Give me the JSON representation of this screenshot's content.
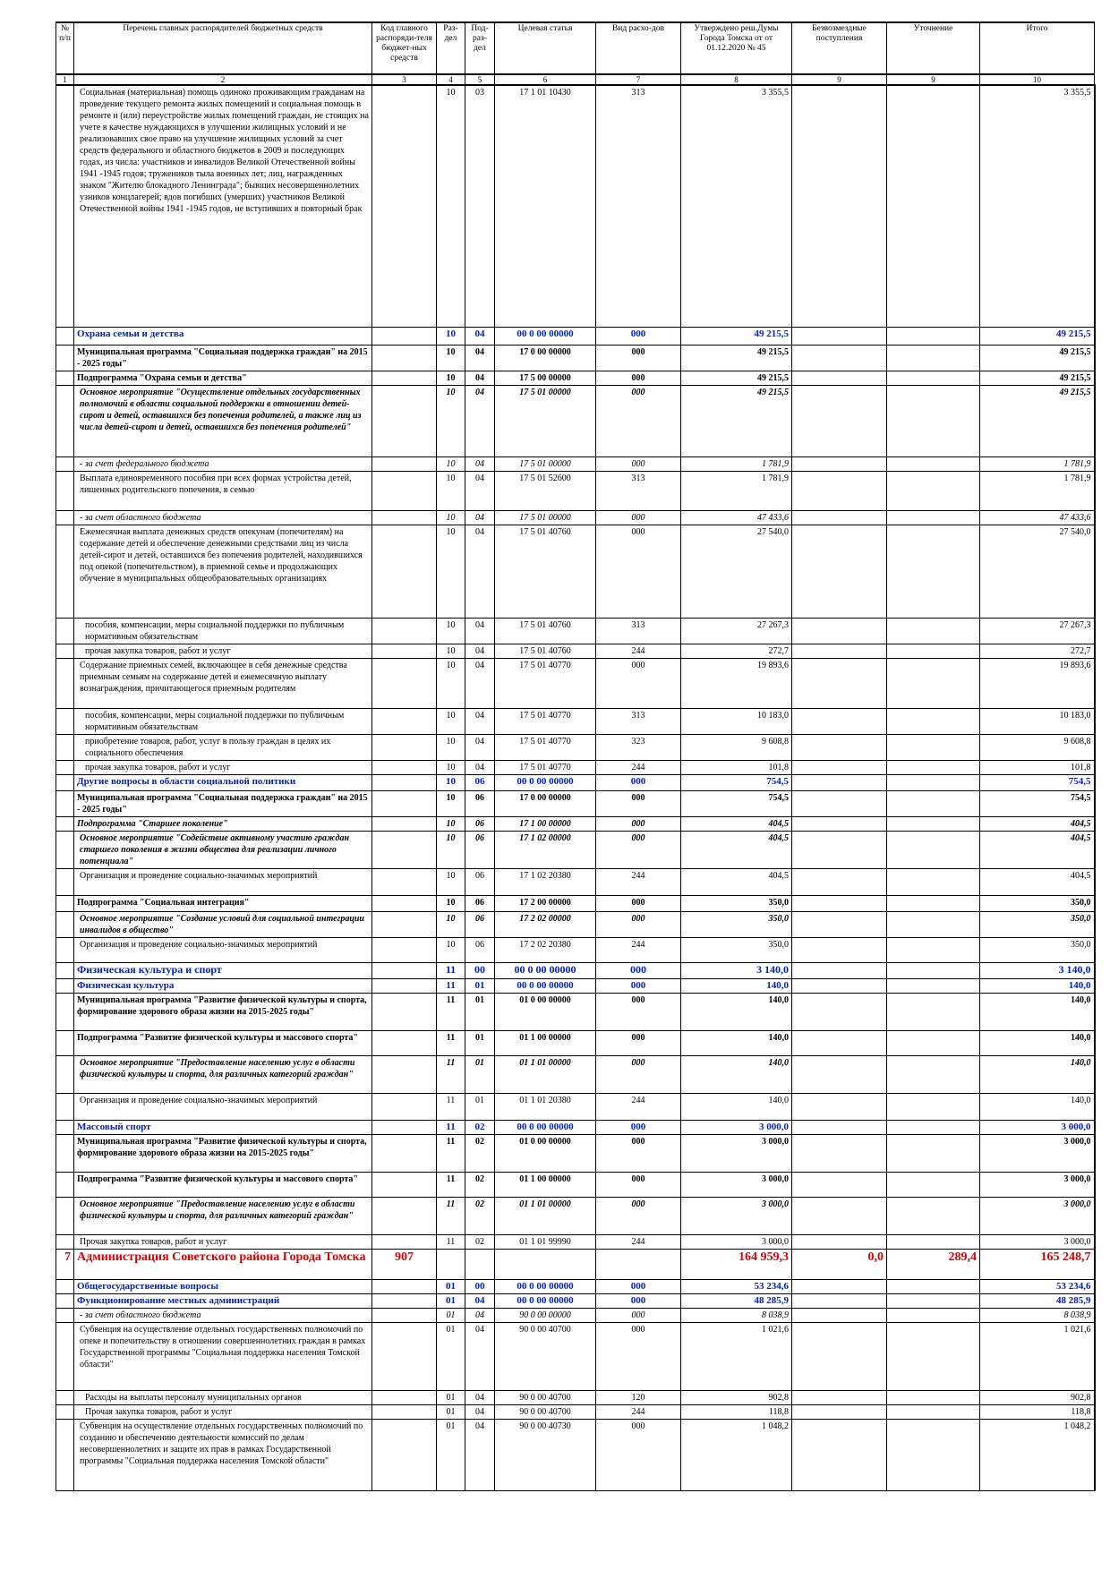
{
  "headers": [
    {
      "label": "№ п/п",
      "num": "1"
    },
    {
      "label": "Перечень главных распорядителей бюджетных средств",
      "num": "2"
    },
    {
      "label": "Код главного распоряди-теля бюджет-ных средств",
      "num": "3"
    },
    {
      "label": "Раз-дел",
      "num": "4"
    },
    {
      "label": "Под-раз-дел",
      "num": "5"
    },
    {
      "label": "Целевая статья",
      "num": "6"
    },
    {
      "label": "Вид расхо-дов",
      "num": "7"
    },
    {
      "label": "Утверждено реш.Думы Города Томска от от 01.12.2020 № 45",
      "num": "8"
    },
    {
      "label": "Безвозмездные поступления",
      "num": "9"
    },
    {
      "label": "Уточнение",
      "num": "9"
    },
    {
      "label": "Итого",
      "num": "10"
    }
  ],
  "rows": [
    {
      "style": "normal",
      "h": 270,
      "no": "",
      "name": "Социальная (материальная) помощь одиноко проживающим гражданам на проведение текущего ремонта жилых помещений и социальная помощь в ремонте и (или) переустройстве жилых помещений граждан, не стоящих на учете в качестве нуждающихся в улучшении жилищных условий и не реализовавших свое право на улучшение жилищных условий за счет средств федерального и областного бюджетов в 2009 и последующих годах, из числа: участников и инвалидов Великой Отечественной войны 1941 -1945 годов; тружеников тыла военных лет; лиц, награжденных знаком \"Жителю блокадного Ленинграда\"; бывших несовершеннолетних узников концлагерей; вдов погибших (умерших) участников Великой Отечественной войны 1941 -1945 годов, не вступивших в повторный брак",
      "code": "",
      "razd": "10",
      "podr": "03",
      "cs": "17 1 01 10430",
      "vr": "313",
      "appr": "3 355,5",
      "bezv": "",
      "utoch": "",
      "total": "3 355,5"
    },
    {
      "style": "section",
      "h": 20,
      "no": "",
      "name": "Охрана семьи и детства",
      "code": "",
      "razd": "10",
      "podr": "04",
      "cs": "00 0 00 00000",
      "vr": "000",
      "appr": "49 215,5",
      "bezv": "",
      "utoch": "",
      "total": "49 215,5"
    },
    {
      "style": "bold",
      "h": 28,
      "no": "",
      "name": "Муниципальная программа \"Социальная поддержка граждан\" на 2015 - 2025 годы\"",
      "code": "",
      "razd": "10",
      "podr": "04",
      "cs": "17 0 00 00000",
      "vr": "000",
      "appr": "49 215,5",
      "bezv": "",
      "utoch": "",
      "total": "49 215,5"
    },
    {
      "style": "bold",
      "h": 16,
      "no": "",
      "name": "Подпрограмма \"Охрана семьи и детства\"",
      "code": "",
      "razd": "10",
      "podr": "04",
      "cs": "17 5 00 00000",
      "vr": "000",
      "appr": "49 215,5",
      "bezv": "",
      "utoch": "",
      "total": "49 215,5"
    },
    {
      "style": "bi",
      "h": 80,
      "no": "",
      "name": "Основное мероприятие \"Осуществление отдельных государственных полномочий в области социальной поддержки в отношении детей-сирот и детей, оставшихся без попечения родителей, а также лиц из числа детей-сирот и детей, оставшихся без попечения родителей\"",
      "code": "",
      "razd": "10",
      "podr": "04",
      "cs": "17 5 01 00000",
      "vr": "000",
      "appr": "49 215,5",
      "bezv": "",
      "utoch": "",
      "total": "49 215,5"
    },
    {
      "style": "it",
      "h": 16,
      "no": "",
      "name": "- за счет федерального бюджета",
      "code": "",
      "razd": "10",
      "podr": "04",
      "cs": "17 5 01 00000",
      "vr": "000",
      "appr": "1 781,9",
      "bezv": "",
      "utoch": "",
      "total": "1 781,9"
    },
    {
      "style": "normal",
      "h": 44,
      "no": "",
      "name": "Выплата единовременного пособия при всех формах устройства детей, лишенных родительского попечения, в семью",
      "code": "",
      "razd": "10",
      "podr": "04",
      "cs": "17 5 01 52600",
      "vr": "313",
      "appr": "1 781,9",
      "bezv": "",
      "utoch": "",
      "total": "1 781,9"
    },
    {
      "style": "it",
      "h": 16,
      "no": "",
      "name": "- за счет областного бюджета",
      "code": "",
      "razd": "10",
      "podr": "04",
      "cs": "17 5 01 00000",
      "vr": "000",
      "appr": "47 433,6",
      "bezv": "",
      "utoch": "",
      "total": "47 433,6"
    },
    {
      "style": "normal",
      "h": 104,
      "no": "",
      "name": "Ежемесячная выплата денежных средств опекунам (попечителям) на содержание детей и обеспечение денежными средствами лиц из числа детей-сирот и детей, оставшихся без попечения родителей, находившихся под опекой (попечительством), в приемной семье и продолжающих обучение в муниципальных общеобразовательных организациях",
      "code": "",
      "razd": "10",
      "podr": "04",
      "cs": "17 5 01 40760",
      "vr": "000",
      "appr": "27 540,0",
      "bezv": "",
      "utoch": "",
      "total": "27 540,0"
    },
    {
      "style": "detail",
      "h": 28,
      "no": "",
      "name": "пособия, компенсации, меры социальной поддержки по публичным нормативным обязательствам",
      "code": "",
      "razd": "10",
      "podr": "04",
      "cs": "17 5 01 40760",
      "vr": "313",
      "appr": "27 267,3",
      "bezv": "",
      "utoch": "",
      "total": "27 267,3"
    },
    {
      "style": "detail",
      "h": 16,
      "no": "",
      "name": "прочая закупка товаров, работ и услуг",
      "code": "",
      "razd": "10",
      "podr": "04",
      "cs": "17 5 01 40760",
      "vr": "244",
      "appr": "272,7",
      "bezv": "",
      "utoch": "",
      "total": "272,7"
    },
    {
      "style": "normal",
      "h": 56,
      "no": "",
      "name": "Содержание приемных семей, включающее в себя денежные средства приемным семьям на содержание детей и ежемесячную выплату вознаграждения, причитающегося приемным родителям",
      "code": "",
      "razd": "10",
      "podr": "04",
      "cs": "17 5 01 40770",
      "vr": "000",
      "appr": "19 893,6",
      "bezv": "",
      "utoch": "",
      "total": "19 893,6"
    },
    {
      "style": "detail",
      "h": 28,
      "no": "",
      "name": "пособия, компенсации, меры социальной поддержки по публичным нормативным обязательствам",
      "code": "",
      "razd": "10",
      "podr": "04",
      "cs": "17 5 01 40770",
      "vr": "313",
      "appr": "10 183,0",
      "bezv": "",
      "utoch": "",
      "total": "10 183,0"
    },
    {
      "style": "detail",
      "h": 28,
      "no": "",
      "name": "приобретение товаров, работ, услуг в пользу граждан в целях их социального обеспечения",
      "code": "",
      "razd": "10",
      "podr": "04",
      "cs": "17 5 01 40770",
      "vr": "323",
      "appr": "9 608,8",
      "bezv": "",
      "utoch": "",
      "total": "9 608,8"
    },
    {
      "style": "detail",
      "h": 16,
      "no": "",
      "name": "прочая закупка товаров, работ и услуг",
      "code": "",
      "razd": "10",
      "podr": "04",
      "cs": "17 5 01 40770",
      "vr": "244",
      "appr": "101,8",
      "bezv": "",
      "utoch": "",
      "total": "101,8"
    },
    {
      "style": "section",
      "h": 18,
      "no": "",
      "name": "Другие вопросы в области социальной политики",
      "code": "",
      "razd": "10",
      "podr": "06",
      "cs": "00 0 00 00000",
      "vr": "000",
      "appr": "754,5",
      "bezv": "",
      "utoch": "",
      "total": "754,5"
    },
    {
      "style": "bold",
      "h": 28,
      "no": "",
      "name": "Муниципальная программа \"Социальная поддержка граждан\" на 2015 - 2025 годы\"",
      "code": "",
      "razd": "10",
      "podr": "06",
      "cs": "17 0 00 00000",
      "vr": "000",
      "appr": "754,5",
      "bezv": "",
      "utoch": "",
      "total": "754,5"
    },
    {
      "style": "bi2",
      "h": 16,
      "no": "",
      "name": "Подпрограмма \"Старшее поколение\"",
      "code": "",
      "razd": "10",
      "podr": "06",
      "cs": "17 1 00 00000",
      "vr": "000",
      "appr": "404,5",
      "bezv": "",
      "utoch": "",
      "total": "404,5"
    },
    {
      "style": "bi",
      "h": 42,
      "no": "",
      "name": "Основное мероприятие \"Содействие активному участию граждан старшего поколения в жизни общества для реализации личного потенциала\"",
      "code": "",
      "razd": "10",
      "podr": "06",
      "cs": "17 1 02 00000",
      "vr": "000",
      "appr": "404,5",
      "bezv": "",
      "utoch": "",
      "total": "404,5"
    },
    {
      "style": "normal",
      "h": 30,
      "no": "",
      "name": "Организация и проведение социально-значимых мероприятий",
      "code": "",
      "razd": "10",
      "podr": "06",
      "cs": "17 1 02 20380",
      "vr": "244",
      "appr": "404,5",
      "bezv": "",
      "utoch": "",
      "total": "404,5"
    },
    {
      "style": "bold",
      "h": 18,
      "no": "",
      "name": "Подпрограмма \"Социальная интеграция\"",
      "code": "",
      "razd": "10",
      "podr": "06",
      "cs": "17 2 00 00000",
      "vr": "000",
      "appr": "350,0",
      "bezv": "",
      "utoch": "",
      "total": "350,0"
    },
    {
      "style": "bi",
      "h": 28,
      "no": "",
      "name": "Основное мероприятие \"Создание условий для социальной интеграции инвалидов в общество\"",
      "code": "",
      "razd": "10",
      "podr": "06",
      "cs": "17 2 02 00000",
      "vr": "000",
      "appr": "350,0",
      "bezv": "",
      "utoch": "",
      "total": "350,0"
    },
    {
      "style": "normal",
      "h": 28,
      "no": "",
      "name": "Организация и проведение социально-значимых мероприятий",
      "code": "",
      "razd": "10",
      "podr": "06",
      "cs": "17 2 02 20380",
      "vr": "244",
      "appr": "350,0",
      "bezv": "",
      "utoch": "",
      "total": "350,0"
    },
    {
      "style": "section sport",
      "h": 18,
      "no": "",
      "name": "Физическая культура и спорт",
      "code": "",
      "razd": "11",
      "podr": "00",
      "cs": "00 0 00 00000",
      "vr": "000",
      "appr": "3 140,0",
      "bezv": "",
      "utoch": "",
      "total": "3 140,0"
    },
    {
      "style": "section",
      "h": 16,
      "no": "",
      "name": "Физическая культура",
      "code": "",
      "razd": "11",
      "podr": "01",
      "cs": "00 0 00 00000",
      "vr": "000",
      "appr": "140,0",
      "bezv": "",
      "utoch": "",
      "total": "140,0"
    },
    {
      "style": "bold",
      "h": 42,
      "no": "",
      "name": "Муниципальная программа \"Развитие физической культуры и спорта, формирование здорового образа жизни на 2015-2025 годы\"",
      "code": "",
      "razd": "11",
      "podr": "01",
      "cs": "01 0 00 00000",
      "vr": "000",
      "appr": "140,0",
      "bezv": "",
      "utoch": "",
      "total": "140,0"
    },
    {
      "style": "bold",
      "h": 28,
      "no": "",
      "name": "Подпрограмма \"Развитие физической культуры и массового спорта\"",
      "code": "",
      "razd": "11",
      "podr": "01",
      "cs": "01 1 00 00000",
      "vr": "000",
      "appr": "140,0",
      "bezv": "",
      "utoch": "",
      "total": "140,0"
    },
    {
      "style": "bi",
      "h": 42,
      "no": "",
      "name": "Основное мероприятие \"Предоставление населению услуг в области физической культуры и спорта, для различных категорий граждан\"",
      "code": "",
      "razd": "11",
      "podr": "01",
      "cs": "01 1 01 00000",
      "vr": "000",
      "appr": "140,0",
      "bezv": "",
      "utoch": "",
      "total": "140,0"
    },
    {
      "style": "normal",
      "h": 30,
      "no": "",
      "name": "Организация и проведение социально-значимых мероприятий",
      "code": "",
      "razd": "11",
      "podr": "01",
      "cs": "01 1 01 20380",
      "vr": "244",
      "appr": "140,0",
      "bezv": "",
      "utoch": "",
      "total": "140,0"
    },
    {
      "style": "section",
      "h": 16,
      "no": "",
      "name": "Массовый спорт",
      "code": "",
      "razd": "11",
      "podr": "02",
      "cs": "00 0 00 00000",
      "vr": "000",
      "appr": "3 000,0",
      "bezv": "",
      "utoch": "",
      "total": "3 000,0"
    },
    {
      "style": "bold",
      "h": 42,
      "no": "",
      "name": "Муниципальная программа \"Развитие физической культуры и спорта, формирование здорового образа жизни на 2015-2025 годы\"",
      "code": "",
      "razd": "11",
      "podr": "02",
      "cs": "01 0 00 00000",
      "vr": "000",
      "appr": "3 000,0",
      "bezv": "",
      "utoch": "",
      "total": "3 000,0"
    },
    {
      "style": "bold",
      "h": 28,
      "no": "",
      "name": "Подпрограмма \"Развитие физической культуры и массового спорта\"",
      "code": "",
      "razd": "11",
      "podr": "02",
      "cs": "01 1 00 00000",
      "vr": "000",
      "appr": "3 000,0",
      "bezv": "",
      "utoch": "",
      "total": "3 000,0"
    },
    {
      "style": "bi",
      "h": 42,
      "no": "",
      "name": "Основное мероприятие \"Предоставление населению услуг в области физической культуры и спорта, для различных категорий граждан\"",
      "code": "",
      "razd": "11",
      "podr": "02",
      "cs": "01 1 01 00000",
      "vr": "000",
      "appr": "3 000,0",
      "bezv": "",
      "utoch": "",
      "total": "3 000,0"
    },
    {
      "style": "normal",
      "h": 16,
      "no": "",
      "name": "Прочая закупка товаров, работ и услуг",
      "code": "",
      "razd": "11",
      "podr": "02",
      "cs": "01 1 01 99990",
      "vr": "244",
      "appr": "3 000,0",
      "bezv": "",
      "utoch": "",
      "total": "3 000,0"
    },
    {
      "style": "admin",
      "h": 34,
      "no": "7",
      "name": "Администрация Советского района Города Томска",
      "code": "907",
      "razd": "",
      "podr": "",
      "cs": "",
      "vr": "",
      "appr": "164 959,3",
      "bezv": "0,0",
      "utoch": "289,4",
      "total": "165 248,7"
    },
    {
      "style": "section",
      "h": 16,
      "no": "",
      "name": "Общегосударственные вопросы",
      "code": "",
      "razd": "01",
      "podr": "00",
      "cs": "00 0 00 00000",
      "vr": "000",
      "appr": "53 234,6",
      "bezv": "",
      "utoch": "",
      "total": "53 234,6"
    },
    {
      "style": "section",
      "h": 16,
      "no": "",
      "name": "Функционирование местных администраций",
      "code": "",
      "razd": "01",
      "podr": "04",
      "cs": "00 0 00 00000",
      "vr": "000",
      "appr": "48 285,9",
      "bezv": "",
      "utoch": "",
      "total": "48 285,9"
    },
    {
      "style": "it",
      "h": 16,
      "no": "",
      "name": "- за счет областного бюджета",
      "code": "",
      "razd": "01",
      "podr": "04",
      "cs": "90 0 00 00000",
      "vr": "000",
      "appr": "8 038,9",
      "bezv": "",
      "utoch": "",
      "total": "8 038,9"
    },
    {
      "style": "normal",
      "h": 76,
      "no": "",
      "name": "Субвенция на осуществление отдельных государственных полномочий по опеке и попечительству в отношении совершеннолетних граждан в рамках Государственной программы \"Социальная поддержка населения Томской области\"",
      "code": "",
      "razd": "01",
      "podr": "04",
      "cs": "90 0 00 40700",
      "vr": "000",
      "appr": "1 021,6",
      "bezv": "",
      "utoch": "",
      "total": "1 021,6"
    },
    {
      "style": "detail",
      "h": 16,
      "no": "",
      "name": "Расходы на выплаты персоналу муниципальных органов",
      "code": "",
      "razd": "01",
      "podr": "04",
      "cs": "90 0 00 40700",
      "vr": "120",
      "appr": "902,8",
      "bezv": "",
      "utoch": "",
      "total": "902,8"
    },
    {
      "style": "detail",
      "h": 16,
      "no": "",
      "name": "Прочая закупка товаров, работ и услуг",
      "code": "",
      "razd": "01",
      "podr": "04",
      "cs": "90 0 00 40700",
      "vr": "244",
      "appr": "118,8",
      "bezv": "",
      "utoch": "",
      "total": "118,8"
    },
    {
      "style": "normal",
      "h": 80,
      "no": "",
      "name": "Субвенция на осуществление отдельных государственных полномочий по созданию и обеспечению деятельности комиссий по делам несовершеннолетних и защите их прав в рамках Государственной программы \"Социальная поддержка населения Томской области\"",
      "code": "",
      "razd": "01",
      "podr": "04",
      "cs": "90 0 00 40730",
      "vr": "000",
      "appr": "1 048,2",
      "bezv": "",
      "utoch": "",
      "total": "1 048,2"
    }
  ]
}
